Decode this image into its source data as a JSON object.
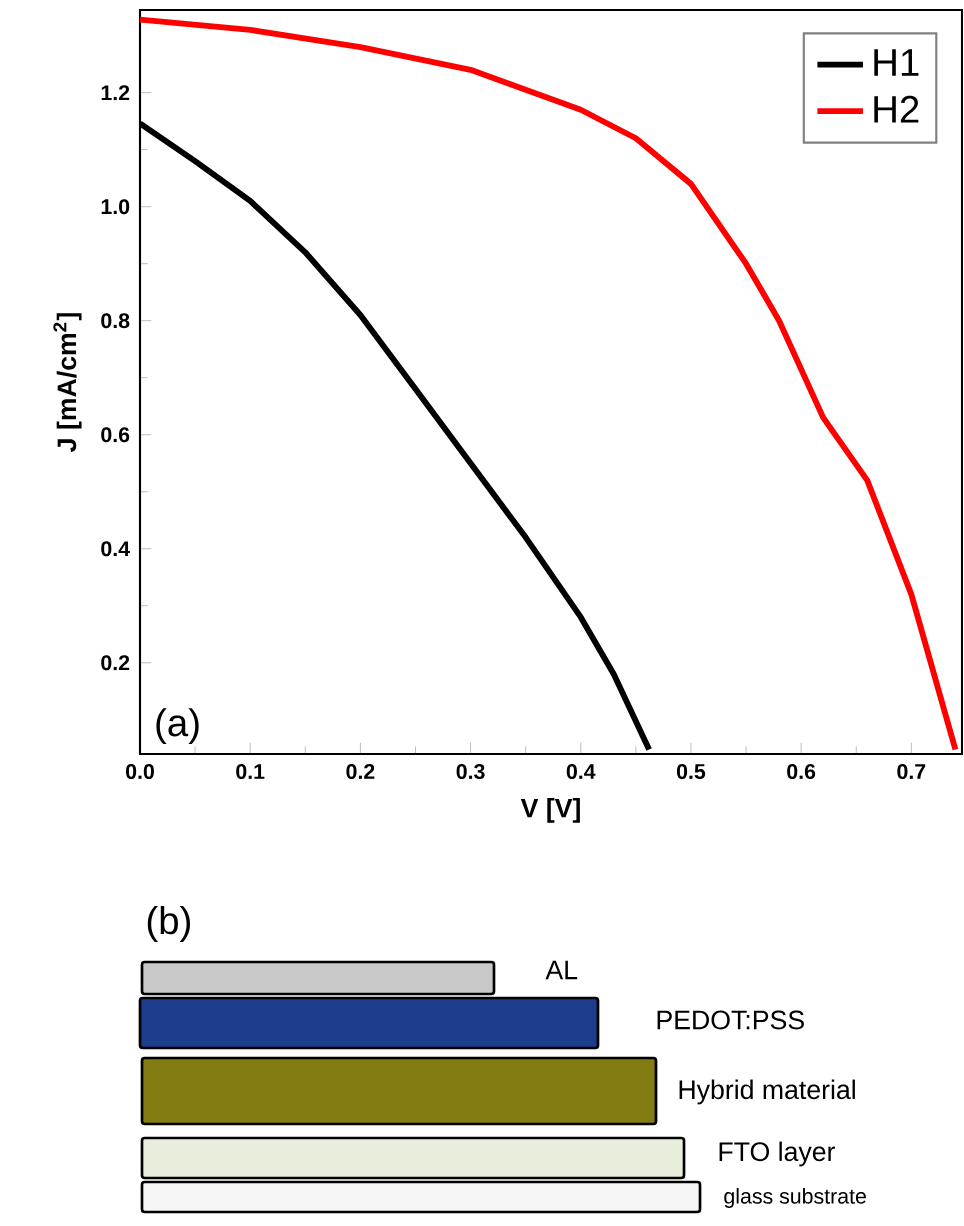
{
  "chart_data": [
    {
      "type": "line",
      "xlabel": "V [V]",
      "ylabel": "J [mA/cm$^{2}$]",
      "xlim": [
        0,
        0.746
      ],
      "ylim": [
        0.04,
        1.345
      ],
      "xticks": [
        {
          "value": 0,
          "label": "0.0"
        },
        0.1,
        0.2,
        0.3,
        0.4,
        0.5,
        0.6,
        0.7
      ],
      "yticks": [
        0.2,
        0.4,
        0.6,
        0.8,
        {
          "value": 1,
          "label": "1.0"
        },
        1.2
      ],
      "legend": "top right",
      "grid": false,
      "marker": "none",
      "line_style": "solid",
      "annotations": [
        "(a)"
      ],
      "series": [
        {
          "name": "H1",
          "color": "#000000",
          "x": [
            0,
            0.05,
            0.1,
            0.15,
            0.2,
            0.25,
            0.3,
            0.35,
            0.4,
            0.43,
            0.462
          ],
          "values": [
            1.146,
            1.08,
            1.01,
            0.92,
            0.81,
            0.68,
            0.55,
            0.42,
            0.28,
            0.18,
            0.048
          ]
        },
        {
          "name": "H2",
          "color": "#ff0000",
          "x": [
            0,
            0.1,
            0.2,
            0.3,
            0.4,
            0.45,
            0.5,
            0.55,
            0.58,
            0.62,
            0.66,
            0.7,
            0.74
          ],
          "values": [
            1.328,
            1.31,
            1.28,
            1.24,
            1.17,
            1.12,
            1.04,
            0.9,
            0.8,
            0.63,
            0.52,
            0.32,
            0.048
          ]
        }
      ]
    },
    {
      "type": "other",
      "title": "(b)",
      "annotations": [
        "AL",
        "PEDOT:PSS",
        "Hybrid material",
        "FTO layer",
        "glass substrate"
      ]
    }
  ]
}
